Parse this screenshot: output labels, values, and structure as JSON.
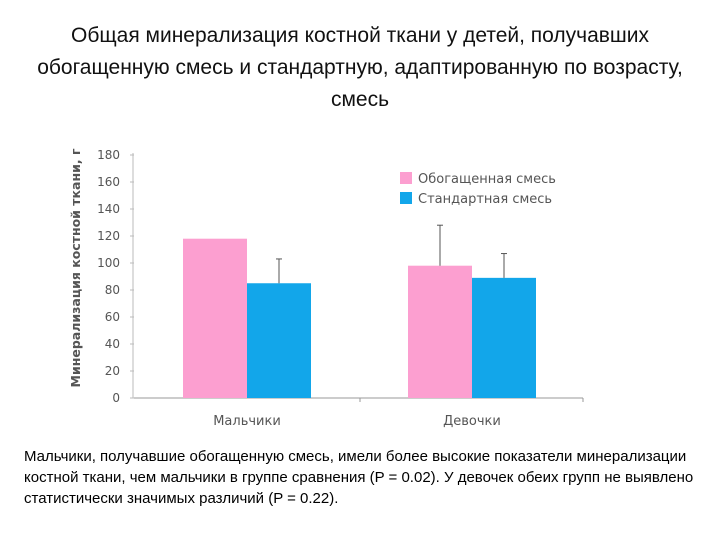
{
  "page": {
    "title": "Общая минерализация костной ткани у детей, получавших обогащенную смесь и стандартную, адаптированную по возрасту, смесь",
    "caption": "Мальчики, получавшие обогащенную смесь, имели более высокие показатели минерализации костной ткани, чем мальчики в группе сравнения (P = 0.02). У девочек обеих групп не выявлено статистически значимых различий (P = 0.22)."
  },
  "chart_data": {
    "type": "bar",
    "title": "",
    "ylabel": "Минерализация костной ткани, г",
    "xlabel": "",
    "ylim": [
      0,
      180
    ],
    "yticks": [
      "0",
      "20",
      "40",
      "60",
      "80",
      "100",
      "120",
      "140",
      "160",
      "180"
    ],
    "categories": [
      "Мальчики",
      "Девочки"
    ],
    "series": [
      {
        "name": "Обогащенная смесь",
        "color": "#fc9fd0",
        "values": [
          118,
          98
        ],
        "error_upper": [
          null,
          128
        ]
      },
      {
        "name": "Стандартная смесь",
        "color": "#12a6ea",
        "values": [
          85,
          89
        ],
        "error_upper": [
          103,
          107
        ]
      }
    ],
    "legend": "top-right",
    "grid": false
  }
}
